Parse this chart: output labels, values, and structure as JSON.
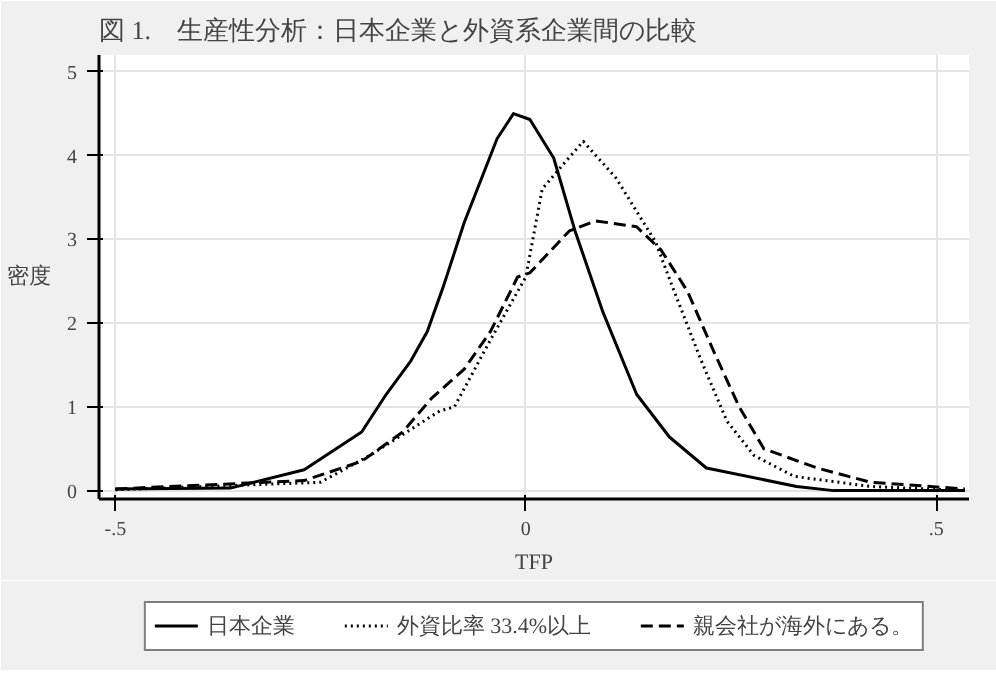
{
  "chart_data": {
    "type": "line",
    "title": "図 1.　生産性分析：日本企業と外資系企業間の比較",
    "xlabel": "TFP",
    "ylabel": "密度",
    "xlim": [
      -0.52,
      0.54
    ],
    "ylim": [
      -0.1,
      5.2
    ],
    "xticks": [
      {
        "value": -0.5,
        "label": "-.5"
      },
      0,
      {
        "value": 0.5,
        "label": ".5"
      }
    ],
    "yticks": [
      0,
      1,
      2,
      3,
      4,
      5
    ],
    "grid": true,
    "legend": "bottom",
    "series": [
      {
        "name": "日本企業",
        "color": "#000000",
        "line_style": "solid",
        "x": [
          -0.5,
          -0.36,
          -0.27,
          -0.2,
          -0.17,
          -0.14,
          -0.12,
          -0.1,
          -0.075,
          -0.035,
          -0.015,
          0.005,
          0.034,
          0.06,
          0.094,
          0.135,
          0.175,
          0.22,
          0.33,
          0.375,
          0.535
        ],
        "values": [
          0.02,
          0.03,
          0.25,
          0.7,
          1.15,
          1.55,
          1.9,
          2.45,
          3.2,
          4.2,
          4.5,
          4.43,
          3.97,
          3.1,
          2.13,
          1.15,
          0.64,
          0.27,
          0.05,
          0.0,
          0.0
        ]
      },
      {
        "name": "外資比率 33.4%以上",
        "color": "#000000",
        "line_style": "dotted",
        "x": [
          -0.5,
          -0.25,
          -0.19,
          -0.105,
          -0.087,
          -0.043,
          0.0,
          0.02,
          0.046,
          0.07,
          0.11,
          0.158,
          0.18,
          0.213,
          0.245,
          0.278,
          0.327,
          0.42,
          0.535
        ],
        "values": [
          0.01,
          0.1,
          0.42,
          0.95,
          1.0,
          1.8,
          2.55,
          3.6,
          3.9,
          4.17,
          3.73,
          2.97,
          2.4,
          1.57,
          0.83,
          0.42,
          0.17,
          0.05,
          0.0
        ]
      },
      {
        "name": "親会社が海外にある。",
        "color": "#000000",
        "line_style": "dashed",
        "x": [
          -0.5,
          -0.27,
          -0.2,
          -0.15,
          -0.115,
          -0.075,
          -0.043,
          -0.01,
          0.005,
          0.053,
          0.085,
          0.135,
          0.165,
          0.197,
          0.23,
          0.26,
          0.29,
          0.355,
          0.42,
          0.535
        ],
        "values": [
          0.02,
          0.12,
          0.35,
          0.7,
          1.1,
          1.45,
          1.9,
          2.55,
          2.6,
          3.1,
          3.22,
          3.15,
          2.87,
          2.38,
          1.64,
          1.0,
          0.5,
          0.27,
          0.1,
          0.02
        ]
      }
    ]
  }
}
